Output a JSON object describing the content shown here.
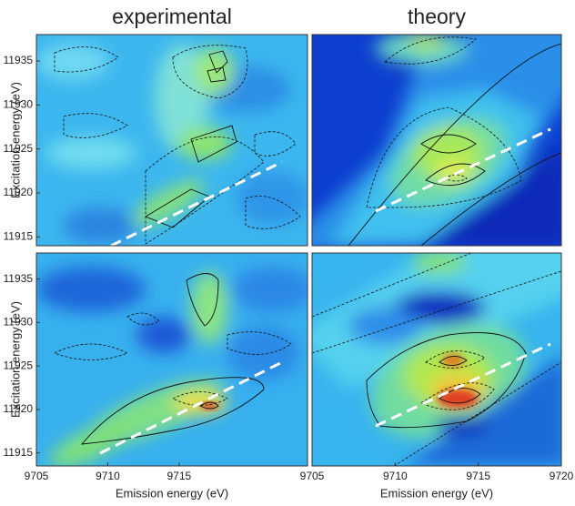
{
  "chart_data": [
    {
      "type": "heatmap",
      "title": "experimental",
      "ylabel": "Excitation energy (eV)",
      "ylim": [
        11914,
        11938
      ],
      "yticks": [
        11915,
        11920,
        11925,
        11930,
        11935
      ]
    },
    {
      "type": "heatmap",
      "title": "theory"
    },
    {
      "type": "heatmap",
      "xlabel": "Emission energy (eV)",
      "ylabel": "Excitation energy (eV)",
      "xlim": [
        9705,
        9724
      ],
      "xticks": [
        9705,
        9710,
        9715
      ],
      "ylim": [
        11913.5,
        11938
      ],
      "yticks": [
        11915,
        11920,
        11925,
        11930,
        11935
      ]
    },
    {
      "type": "heatmap",
      "xlabel": "Emission energy (eV)",
      "xlim": [
        9705,
        9720
      ],
      "xticks": [
        9705,
        9710,
        9715,
        9720
      ]
    }
  ]
}
